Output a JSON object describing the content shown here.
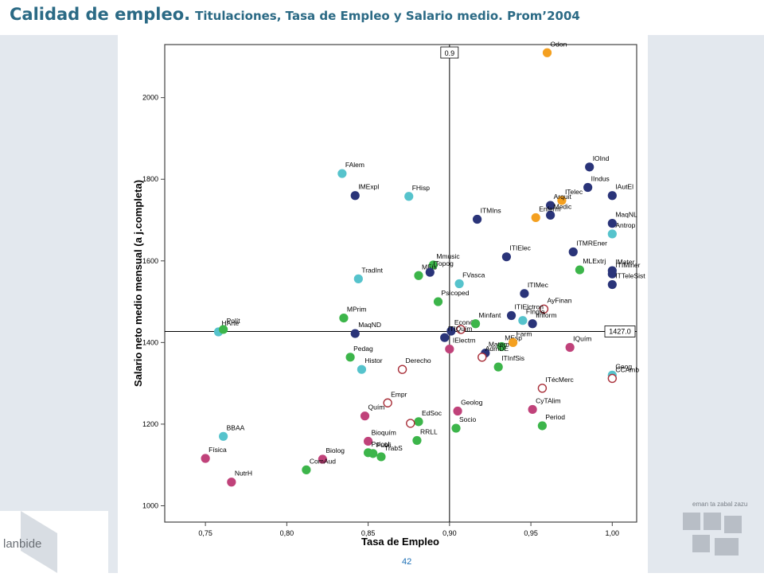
{
  "title": {
    "main": "Calidad de empleo.",
    "sub": "Titulaciones, Tasa de Empleo y Salario medio. Prom’2004"
  },
  "page_number": "42",
  "logos": {
    "lanbide_text": "lanbide",
    "gov_text": "eman ta zabal zazu"
  },
  "colors": {
    "title": "#2b6a85",
    "navy": "#2a3479",
    "cyan": "#56c3cc",
    "green": "#3cb54a",
    "orange": "#f4a020",
    "magenta": "#c0427a",
    "outline": "#a9303a",
    "side_panel": "#e3e8ee"
  },
  "chart_data": {
    "type": "scatter",
    "title": "",
    "xlabel": "Tasa de Empleo",
    "ylabel": "Salario neto medio mensual (a j.completa)",
    "xlim": [
      0.725,
      1.015
    ],
    "ylim": [
      960,
      2130
    ],
    "xticks": [
      "0,75",
      "0,80",
      "0,85",
      "0,90",
      "0,95",
      "1,00"
    ],
    "xtick_values": [
      0.75,
      0.8,
      0.85,
      0.9,
      0.95,
      1.0
    ],
    "yticks": [
      "1000",
      "1200",
      "1400",
      "1600",
      "1800",
      "2000"
    ],
    "ytick_values": [
      1000,
      1200,
      1400,
      1600,
      1800,
      2000
    ],
    "reference_lines": [
      {
        "axis": "x",
        "value": 0.9,
        "label": "0.9"
      },
      {
        "axis": "y",
        "value": 1427.0,
        "label": "1427.0"
      }
    ],
    "points": [
      {
        "label": "Odon",
        "x": 0.96,
        "y": 2110,
        "color": "orange"
      },
      {
        "label": "IOInd",
        "x": 0.986,
        "y": 1830,
        "color": "navy"
      },
      {
        "label": "FAlem",
        "x": 0.834,
        "y": 1814,
        "color": "cyan"
      },
      {
        "label": "IMExpl",
        "x": 0.842,
        "y": 1760,
        "color": "navy"
      },
      {
        "label": "FHisp",
        "x": 0.875,
        "y": 1758,
        "color": "cyan"
      },
      {
        "label": "IIndus",
        "x": 0.985,
        "y": 1780,
        "color": "navy"
      },
      {
        "label": "IAutEl",
        "x": 1.0,
        "y": 1760,
        "color": "navy"
      },
      {
        "label": "ITelec",
        "x": 0.969,
        "y": 1748,
        "color": "orange"
      },
      {
        "label": "Arquit",
        "x": 0.962,
        "y": 1736,
        "color": "navy"
      },
      {
        "label": "Medic",
        "x": 0.962,
        "y": 1712,
        "color": "navy"
      },
      {
        "label": "Enferm",
        "x": 0.953,
        "y": 1706,
        "color": "orange"
      },
      {
        "label": "ITMIns",
        "x": 0.917,
        "y": 1702,
        "color": "navy"
      },
      {
        "label": "MaqNL",
        "x": 1.0,
        "y": 1692,
        "color": "navy"
      },
      {
        "label": "Antrop",
        "x": 1.0,
        "y": 1666,
        "color": "cyan"
      },
      {
        "label": "ITMREner",
        "x": 0.976,
        "y": 1622,
        "color": "navy"
      },
      {
        "label": "ITIElec",
        "x": 0.935,
        "y": 1610,
        "color": "navy"
      },
      {
        "label": "Mmusic",
        "x": 0.89,
        "y": 1590,
        "color": "green"
      },
      {
        "label": "TradInt",
        "x": 0.844,
        "y": 1556,
        "color": "cyan"
      },
      {
        "label": "MFís",
        "x": 0.881,
        "y": 1564,
        "color": "green"
      },
      {
        "label": "ITopog",
        "x": 0.888,
        "y": 1572,
        "color": "navy"
      },
      {
        "label": "FVasca",
        "x": 0.906,
        "y": 1544,
        "color": "cyan"
      },
      {
        "label": "MLExtrj",
        "x": 0.98,
        "y": 1578,
        "color": "green"
      },
      {
        "label": "IMater",
        "x": 1.0,
        "y": 1576,
        "color": "navy"
      },
      {
        "label": "ITIMiner",
        "x": 1.0,
        "y": 1568,
        "color": "navy"
      },
      {
        "label": "ITTeleSist",
        "x": 1.0,
        "y": 1542,
        "color": "navy"
      },
      {
        "label": "ITIMec",
        "x": 0.946,
        "y": 1520,
        "color": "navy"
      },
      {
        "label": "Psicoped",
        "x": 0.893,
        "y": 1500,
        "color": "green"
      },
      {
        "label": "AyFinan",
        "x": 0.958,
        "y": 1482,
        "color": "outline"
      },
      {
        "label": "ITIElctron",
        "x": 0.938,
        "y": 1466,
        "color": "navy"
      },
      {
        "label": "FIngle",
        "x": 0.945,
        "y": 1454,
        "color": "cyan"
      },
      {
        "label": "MPrim",
        "x": 0.835,
        "y": 1460,
        "color": "green"
      },
      {
        "label": "IInform",
        "x": 0.951,
        "y": 1446,
        "color": "navy"
      },
      {
        "label": "Económ",
        "x": 0.901,
        "y": 1428,
        "color": "navy"
      },
      {
        "label": "",
        "x": 0.907,
        "y": 1432,
        "color": "outline"
      },
      {
        "label": "Minfant",
        "x": 0.916,
        "y": 1446,
        "color": "green"
      },
      {
        "label": "HArte",
        "x": 0.758,
        "y": 1426,
        "color": "cyan"
      },
      {
        "label": "Polít",
        "x": 0.761,
        "y": 1432,
        "color": "green"
      },
      {
        "label": "MaqND",
        "x": 0.842,
        "y": 1422,
        "color": "navy"
      },
      {
        "label": "ITIQuím",
        "x": 0.897,
        "y": 1412,
        "color": "navy"
      },
      {
        "label": "IElectrn",
        "x": 0.9,
        "y": 1384,
        "color": "magenta"
      },
      {
        "label": "MEsp",
        "x": 0.932,
        "y": 1390,
        "color": "green"
      },
      {
        "label": "Farm",
        "x": 0.939,
        "y": 1400,
        "color": "orange"
      },
      {
        "label": "IQuím",
        "x": 0.974,
        "y": 1388,
        "color": "magenta"
      },
      {
        "label": "Matem",
        "x": 0.922,
        "y": 1374,
        "color": "navy"
      },
      {
        "label": "AdmDE",
        "x": 0.92,
        "y": 1364,
        "color": "outline"
      },
      {
        "label": "Pedag",
        "x": 0.839,
        "y": 1364,
        "color": "green"
      },
      {
        "label": "Histor",
        "x": 0.846,
        "y": 1334,
        "color": "cyan"
      },
      {
        "label": "Derecho",
        "x": 0.871,
        "y": 1334,
        "color": "outline"
      },
      {
        "label": "ITInfSis",
        "x": 0.93,
        "y": 1340,
        "color": "green"
      },
      {
        "label": "Geog",
        "x": 1.0,
        "y": 1320,
        "color": "cyan"
      },
      {
        "label": "CCAmb",
        "x": 1.0,
        "y": 1312,
        "color": "outline"
      },
      {
        "label": "ITécMerc",
        "x": 0.957,
        "y": 1288,
        "color": "outline"
      },
      {
        "label": "CyTAlim",
        "x": 0.951,
        "y": 1236,
        "color": "magenta"
      },
      {
        "label": "Empr",
        "x": 0.862,
        "y": 1252,
        "color": "outline"
      },
      {
        "label": "Geolog",
        "x": 0.905,
        "y": 1232,
        "color": "magenta"
      },
      {
        "label": "Quím",
        "x": 0.848,
        "y": 1220,
        "color": "magenta"
      },
      {
        "label": "EdSoc",
        "x": 0.881,
        "y": 1206,
        "color": "green"
      },
      {
        "label": "",
        "x": 0.876,
        "y": 1202,
        "color": "outline"
      },
      {
        "label": "Period",
        "x": 0.957,
        "y": 1196,
        "color": "green"
      },
      {
        "label": "Socio",
        "x": 0.904,
        "y": 1190,
        "color": "green"
      },
      {
        "label": "Bioquím",
        "x": 0.85,
        "y": 1158,
        "color": "magenta"
      },
      {
        "label": "RRLL",
        "x": 0.88,
        "y": 1160,
        "color": "green"
      },
      {
        "label": "BBAA",
        "x": 0.761,
        "y": 1170,
        "color": "cyan"
      },
      {
        "label": "Publi",
        "x": 0.853,
        "y": 1128,
        "color": "green"
      },
      {
        "label": "TrabS",
        "x": 0.858,
        "y": 1120,
        "color": "green"
      },
      {
        "label": "Física",
        "x": 0.75,
        "y": 1116,
        "color": "magenta"
      },
      {
        "label": "Biolog",
        "x": 0.822,
        "y": 1114,
        "color": "magenta"
      },
      {
        "label": "Psicol",
        "x": 0.85,
        "y": 1130,
        "color": "green"
      },
      {
        "label": "ComAud",
        "x": 0.812,
        "y": 1088,
        "color": "green"
      },
      {
        "label": "NutrH",
        "x": 0.766,
        "y": 1058,
        "color": "magenta"
      }
    ]
  }
}
